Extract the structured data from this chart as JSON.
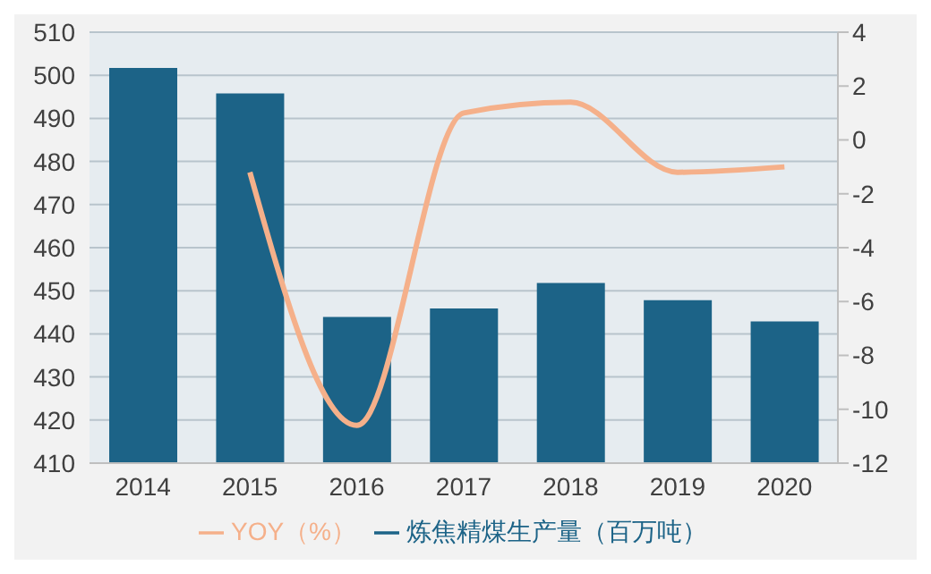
{
  "chart_data": {
    "type": "bar",
    "categories": [
      "2014",
      "2015",
      "2016",
      "2017",
      "2018",
      "2019",
      "2020"
    ],
    "series": [
      {
        "name": "炼焦精煤生产量（百万吨）",
        "color": "#1c6387",
        "values": [
          501.7,
          495.8,
          443.9,
          445.9,
          451.8,
          447.8,
          442.9
        ]
      },
      {
        "name": "YOY（%）",
        "type": "line",
        "axis": "y2",
        "color": "#f5b08a",
        "values": [
          null,
          -1.2,
          -10.6,
          1.0,
          1.4,
          -1.2,
          -1.0
        ]
      }
    ],
    "ylim": [
      410,
      510
    ],
    "yticks": [
      410,
      420,
      430,
      440,
      450,
      460,
      470,
      480,
      490,
      500,
      510
    ],
    "y2lim": [
      -12,
      4
    ],
    "y2ticks": [
      -12,
      -10,
      -8,
      -6,
      -4,
      -2,
      0,
      2,
      4
    ],
    "grid": "y",
    "legend": "bottom"
  }
}
